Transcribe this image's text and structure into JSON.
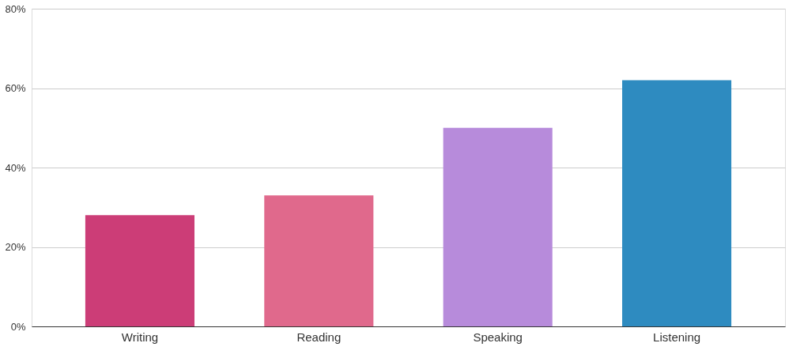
{
  "chart_data": {
    "type": "bar",
    "categories": [
      "Writing",
      "Reading",
      "Speaking",
      "Listening"
    ],
    "values": [
      28,
      33,
      50,
      62
    ],
    "colors": [
      "#cc3d77",
      "#e0698c",
      "#b78bdb",
      "#2e8bc0"
    ],
    "ylim": [
      0,
      80
    ],
    "yticks": [
      {
        "value": 0,
        "label": "0%"
      },
      {
        "value": 20,
        "label": "20%"
      },
      {
        "value": 40,
        "label": "40%"
      },
      {
        "value": 60,
        "label": "60%"
      },
      {
        "value": 80,
        "label": "80%"
      }
    ],
    "grid": "y",
    "legend": false
  }
}
